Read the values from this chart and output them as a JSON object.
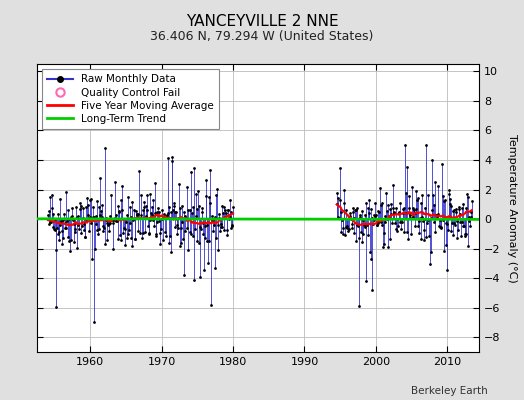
{
  "title": "YANCEYVILLE 2 NNE",
  "subtitle": "36.406 N, 79.294 W (United States)",
  "ylabel": "Temperature Anomaly (°C)",
  "attribution": "Berkeley Earth",
  "ylim": [
    -9,
    10.5
  ],
  "yticks": [
    -8,
    -6,
    -4,
    -2,
    0,
    2,
    4,
    6,
    8,
    10
  ],
  "xlim": [
    1952.5,
    2014.5
  ],
  "xticks": [
    1960,
    1970,
    1980,
    1990,
    2000,
    2010
  ],
  "raw_color": "#3333cc",
  "dot_color": "#000000",
  "qc_color": "#ff69b4",
  "moving_avg_color": "#ff0000",
  "trend_color": "#00cc00",
  "background_color": "#e0e0e0",
  "plot_bg_color": "#ffffff",
  "grid_color": "#bbbbbb",
  "seed": 42,
  "era1_start": 1954.083,
  "era1_end": 1980.0,
  "era2_start": 1994.5,
  "era2_end": 2013.5,
  "title_fontsize": 11,
  "subtitle_fontsize": 9,
  "tick_fontsize": 8,
  "ylabel_fontsize": 8
}
